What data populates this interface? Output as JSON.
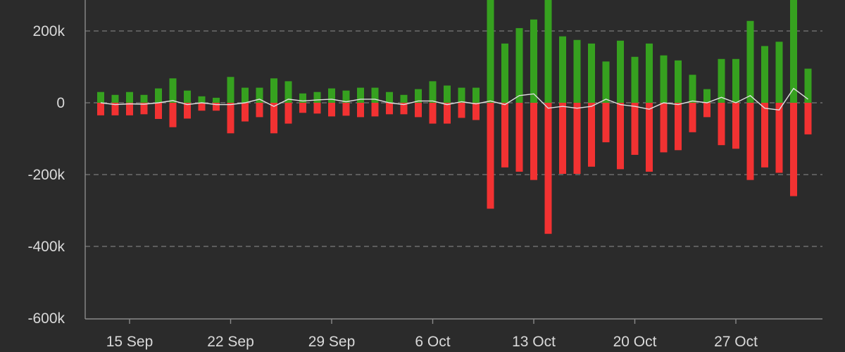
{
  "chart_data": {
    "type": "bar",
    "subtype": "diverging-stacked-bar-with-net-line",
    "title": "",
    "xlabel": "",
    "ylabel": "",
    "ylim": [
      -600000,
      300000
    ],
    "y_ticks": [
      {
        "value": 200000,
        "label": "200k"
      },
      {
        "value": 0,
        "label": "0"
      },
      {
        "value": -200000,
        "label": "-200k"
      },
      {
        "value": -400000,
        "label": "-400k"
      },
      {
        "value": -600000,
        "label": "-600k"
      }
    ],
    "x_ticks": [
      {
        "date": "2023-09-15",
        "label": "15 Sep"
      },
      {
        "date": "2023-09-22",
        "label": "22 Sep"
      },
      {
        "date": "2023-09-29",
        "label": "29 Sep"
      },
      {
        "date": "2023-10-06",
        "label": "6 Oct"
      },
      {
        "date": "2023-10-13",
        "label": "13 Oct"
      },
      {
        "date": "2023-10-20",
        "label": "20 Oct"
      },
      {
        "date": "2023-10-27",
        "label": "27 Oct"
      }
    ],
    "grid": true,
    "legend": "none",
    "colors": {
      "positive": "#36a11f",
      "negative": "#f23232",
      "net": "#e0e0e0",
      "background": "#2b2b2b",
      "grid": "#7a7a7a",
      "text": "#d9d9d9"
    },
    "x": [
      "2023-09-13",
      "2023-09-14",
      "2023-09-15",
      "2023-09-16",
      "2023-09-17",
      "2023-09-18",
      "2023-09-19",
      "2023-09-20",
      "2023-09-21",
      "2023-09-22",
      "2023-09-23",
      "2023-09-24",
      "2023-09-25",
      "2023-09-26",
      "2023-09-27",
      "2023-09-28",
      "2023-09-29",
      "2023-09-30",
      "2023-10-01",
      "2023-10-02",
      "2023-10-03",
      "2023-10-04",
      "2023-10-05",
      "2023-10-06",
      "2023-10-07",
      "2023-10-08",
      "2023-10-09",
      "2023-10-10",
      "2023-10-11",
      "2023-10-12",
      "2023-10-13",
      "2023-10-14",
      "2023-10-15",
      "2023-10-16",
      "2023-10-17",
      "2023-10-18",
      "2023-10-19",
      "2023-10-20",
      "2023-10-21",
      "2023-10-22",
      "2023-10-23",
      "2023-10-24",
      "2023-10-25",
      "2023-10-26",
      "2023-10-27",
      "2023-10-28",
      "2023-10-29",
      "2023-10-30",
      "2023-10-31",
      "2023-11-01"
    ],
    "series": [
      {
        "role": "positive",
        "values": [
          30000,
          22000,
          30000,
          22000,
          40000,
          68000,
          34000,
          18000,
          14000,
          72000,
          42000,
          42000,
          68000,
          60000,
          26000,
          30000,
          40000,
          34000,
          42000,
          42000,
          30000,
          22000,
          38000,
          60000,
          48000,
          42000,
          42000,
          300000,
          165000,
          208000,
          232000,
          300000,
          185000,
          175000,
          165000,
          115000,
          173000,
          128000,
          165000,
          132000,
          118000,
          78000,
          38000,
          122000,
          122000,
          228000,
          158000,
          170000,
          300000,
          95000
        ]
      },
      {
        "role": "negative",
        "values": [
          -35000,
          -35000,
          -35000,
          -32000,
          -45000,
          -68000,
          -44000,
          -22000,
          -22000,
          -85000,
          -52000,
          -40000,
          -85000,
          -58000,
          -28000,
          -30000,
          -38000,
          -36000,
          -40000,
          -38000,
          -32000,
          -32000,
          -40000,
          -58000,
          -58000,
          -42000,
          -48000,
          -295000,
          -180000,
          -192000,
          -215000,
          -365000,
          -198000,
          -198000,
          -178000,
          -110000,
          -185000,
          -145000,
          -192000,
          -138000,
          -132000,
          -82000,
          -40000,
          -118000,
          -128000,
          -215000,
          -180000,
          -195000,
          -260000,
          -88000
        ]
      },
      {
        "role": "net",
        "values": [
          0,
          -5000,
          -3000,
          -4000,
          0,
          6000,
          -5000,
          0,
          -5000,
          -5000,
          0,
          10000,
          -10000,
          10000,
          5000,
          8000,
          10000,
          3000,
          10000,
          10000,
          0,
          -5000,
          5000,
          5000,
          -5000,
          3000,
          -3000,
          5000,
          -5000,
          20000,
          25000,
          -15000,
          -10000,
          -15000,
          -10000,
          10000,
          -5000,
          -10000,
          -18000,
          0,
          -5000,
          5000,
          0,
          15000,
          0,
          20000,
          -15000,
          -20000,
          40000,
          10000
        ]
      }
    ]
  }
}
